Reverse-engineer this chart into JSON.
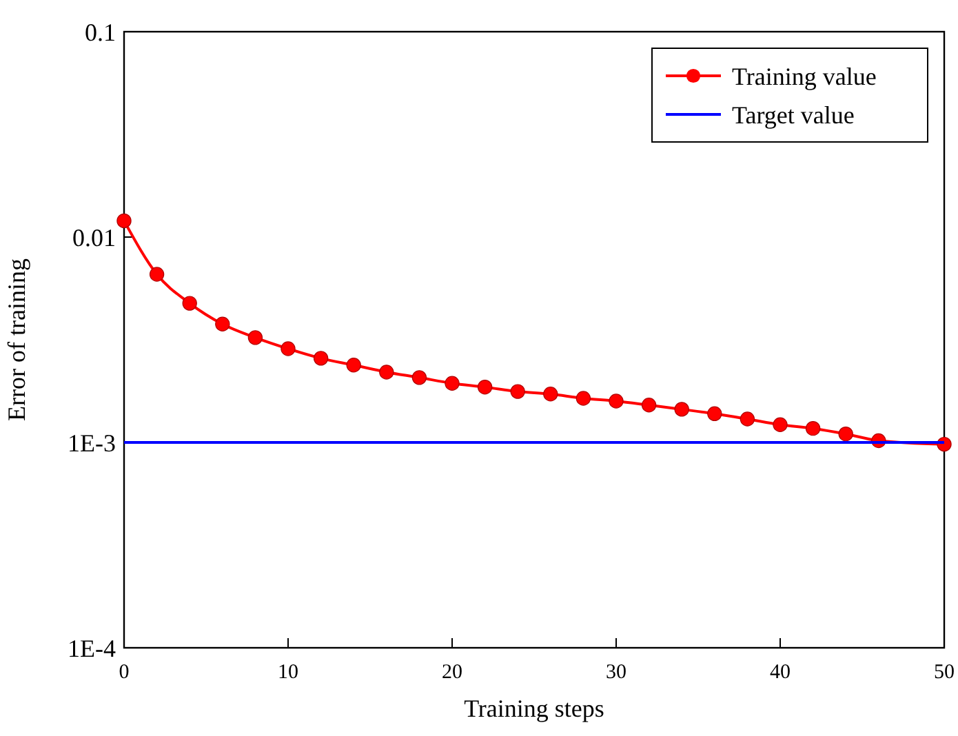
{
  "chart_data": {
    "type": "line",
    "xlabel": "Training steps",
    "ylabel": "Error of training",
    "log": "y",
    "xlim": [
      0,
      50
    ],
    "ylim": [
      0.0001,
      0.1
    ],
    "xticks": [
      0,
      10,
      20,
      30,
      40,
      50
    ],
    "yticks": [
      {
        "value": 0.0001,
        "label": "1E-4"
      },
      {
        "value": 0.001,
        "label": "1E-3"
      },
      0.01,
      0.1
    ],
    "legend": "top right",
    "series": [
      {
        "name": "Training value",
        "color": "#ff0000",
        "marker": "circle",
        "x": [
          0,
          2,
          4,
          6,
          8,
          10,
          12,
          14,
          16,
          18,
          20,
          22,
          24,
          26,
          28,
          30,
          32,
          34,
          36,
          38,
          40,
          42,
          44,
          46,
          50
        ],
        "values": [
          0.012,
          0.00659,
          0.00476,
          0.00377,
          0.00324,
          0.00286,
          0.00257,
          0.00238,
          0.0022,
          0.00207,
          0.00194,
          0.00186,
          0.00177,
          0.00172,
          0.00164,
          0.00159,
          0.00152,
          0.00145,
          0.00138,
          0.0013,
          0.00122,
          0.00117,
          0.0011,
          0.00102,
          0.00098
        ]
      },
      {
        "name": "Target value",
        "color": "#0000ff",
        "marker": "none",
        "x": [
          0,
          50
        ],
        "values": [
          0.001,
          0.001
        ]
      }
    ]
  }
}
